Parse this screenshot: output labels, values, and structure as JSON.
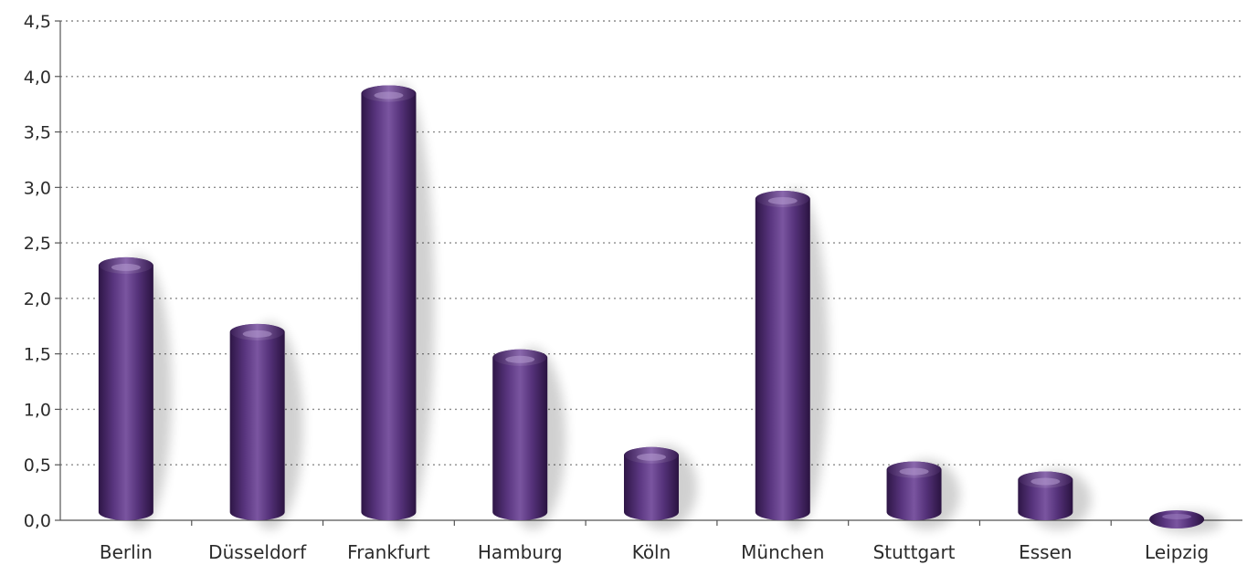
{
  "chart_data": {
    "type": "bar",
    "categories": [
      "Berlin",
      "Düsseldorf",
      "Frankfurt",
      "Hamburg",
      "Köln",
      "München",
      "Stuttgart",
      "Essen",
      "Leipzig"
    ],
    "values": [
      2.37,
      1.77,
      3.92,
      1.54,
      0.66,
      2.97,
      0.53,
      0.44,
      0.03
    ],
    "yticks": [
      "0,0",
      "0,5",
      "1,0",
      "1,5",
      "2,0",
      "2,5",
      "3,0",
      "3,5",
      "4,0",
      "4,5"
    ],
    "ylim": [
      0,
      4.5
    ],
    "grid": true,
    "bar_color": "#4f2d6e",
    "title": "",
    "xlabel": "",
    "ylabel": ""
  }
}
